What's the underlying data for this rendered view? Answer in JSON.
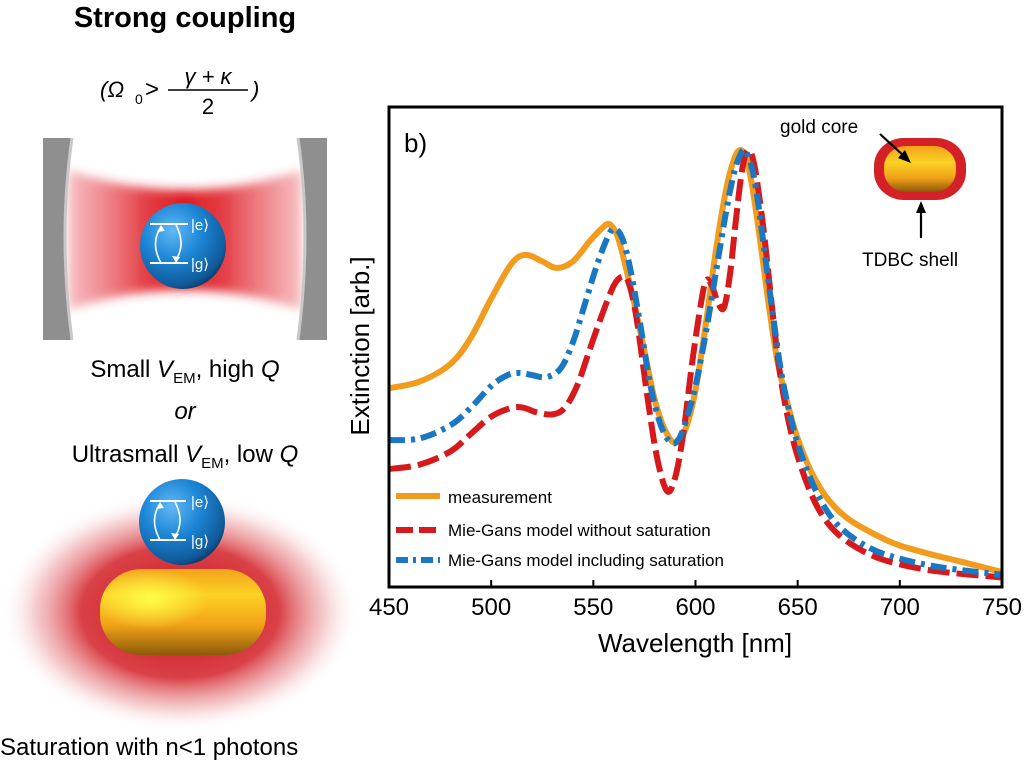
{
  "left_panel": {
    "title": "Strong coupling",
    "condition": {
      "lhs": "(Ω",
      "lhs_sub": "0",
      "op": ">",
      "numerator": "γ + κ",
      "denominator": "2",
      "close": ")"
    },
    "cavity_diagram": {
      "state_excited": "|e⟩",
      "state_ground": "|g⟩"
    },
    "caption_cavity": {
      "prefix": "Small ",
      "v": "V",
      "v_sub": "EM",
      "mid": ", high ",
      "q": "Q"
    },
    "caption_or": "or",
    "caption_ultra": {
      "prefix": "Ultrasmall ",
      "v": "V",
      "v_sub": "EM",
      "mid": ", low ",
      "q": "Q"
    },
    "nanoparticle_diagram": {
      "state_excited": "|e⟩",
      "state_ground": "|g⟩"
    },
    "caption_saturation": "Saturation with n<1 photons"
  },
  "colors": {
    "measurement": "#f29b1d",
    "no_saturation": "#d7191c",
    "with_saturation": "#1a78c2",
    "sphere": "#1e88d8",
    "gold": "#f7b21b",
    "shell": "#d42027",
    "mirror": "#8f8f8f"
  },
  "chart_data": {
    "type": "line",
    "panel_label": "b)",
    "title": "",
    "xlabel": "Wavelength [nm]",
    "ylabel": "Extinction [arb.]",
    "xlim": [
      450,
      750
    ],
    "ylim": [
      0,
      1.0
    ],
    "xticks": [
      450,
      500,
      550,
      600,
      650,
      700,
      750
    ],
    "yticks": [],
    "grid": false,
    "legend_position": "bottom-left",
    "inset": {
      "label_core": "gold core",
      "label_shell": "TDBC shell"
    },
    "series": [
      {
        "name": "measurement",
        "style": "solid",
        "x": [
          450,
          465,
          480,
          490,
          500,
          510,
          517,
          525,
          532,
          540,
          548,
          554,
          558,
          562,
          566,
          570,
          575,
          580,
          585,
          590,
          595,
          600,
          605,
          610,
          615,
          619,
          622,
          625,
          628,
          632,
          636,
          640,
          645,
          650,
          657,
          665,
          675,
          690,
          700,
          715,
          730,
          750
        ],
        "y": [
          0.455,
          0.47,
          0.51,
          0.57,
          0.66,
          0.74,
          0.76,
          0.745,
          0.73,
          0.745,
          0.79,
          0.82,
          0.83,
          0.8,
          0.73,
          0.65,
          0.54,
          0.43,
          0.36,
          0.33,
          0.36,
          0.45,
          0.6,
          0.77,
          0.91,
          0.98,
          1.0,
          0.98,
          0.91,
          0.78,
          0.64,
          0.52,
          0.42,
          0.34,
          0.26,
          0.2,
          0.155,
          0.115,
          0.095,
          0.075,
          0.058,
          0.034
        ]
      },
      {
        "name": "Mie-Gans model without saturation",
        "style": "dashed",
        "x": [
          450,
          465,
          480,
          490,
          500,
          510,
          516,
          522,
          530,
          536,
          542,
          548,
          554,
          560,
          564,
          567,
          571,
          576,
          581,
          586,
          590,
          594,
          598,
          602,
          605,
          608,
          611,
          614,
          617,
          620,
          623,
          626,
          629,
          633,
          637,
          641,
          646,
          652,
          660,
          670,
          685,
          700,
          720,
          750
        ],
        "y": [
          0.27,
          0.28,
          0.31,
          0.35,
          0.39,
          0.41,
          0.41,
          0.4,
          0.395,
          0.41,
          0.46,
          0.54,
          0.62,
          0.69,
          0.71,
          0.7,
          0.62,
          0.45,
          0.3,
          0.22,
          0.25,
          0.35,
          0.5,
          0.63,
          0.7,
          0.69,
          0.65,
          0.64,
          0.72,
          0.85,
          0.96,
          1.0,
          0.96,
          0.83,
          0.66,
          0.5,
          0.37,
          0.27,
          0.18,
          0.12,
          0.075,
          0.052,
          0.035,
          0.022
        ]
      },
      {
        "name": "Mie-Gans model including saturation",
        "style": "dash-dot",
        "x": [
          450,
          465,
          480,
          490,
          500,
          508,
          514,
          520,
          527,
          534,
          540,
          546,
          552,
          557,
          560,
          564,
          568,
          573,
          578,
          583,
          588,
          592,
          596,
          600,
          605,
          610,
          615,
          619,
          622,
          624,
          627,
          630,
          634,
          638,
          642,
          647,
          652,
          660,
          670,
          685,
          700,
          720,
          750
        ],
        "y": [
          0.336,
          0.34,
          0.37,
          0.41,
          0.46,
          0.485,
          0.49,
          0.485,
          0.48,
          0.5,
          0.56,
          0.65,
          0.74,
          0.8,
          0.82,
          0.8,
          0.73,
          0.6,
          0.46,
          0.37,
          0.33,
          0.34,
          0.39,
          0.46,
          0.58,
          0.72,
          0.86,
          0.95,
          0.99,
          1.0,
          0.97,
          0.9,
          0.76,
          0.62,
          0.49,
          0.38,
          0.3,
          0.21,
          0.14,
          0.09,
          0.065,
          0.045,
          0.028
        ]
      }
    ]
  }
}
